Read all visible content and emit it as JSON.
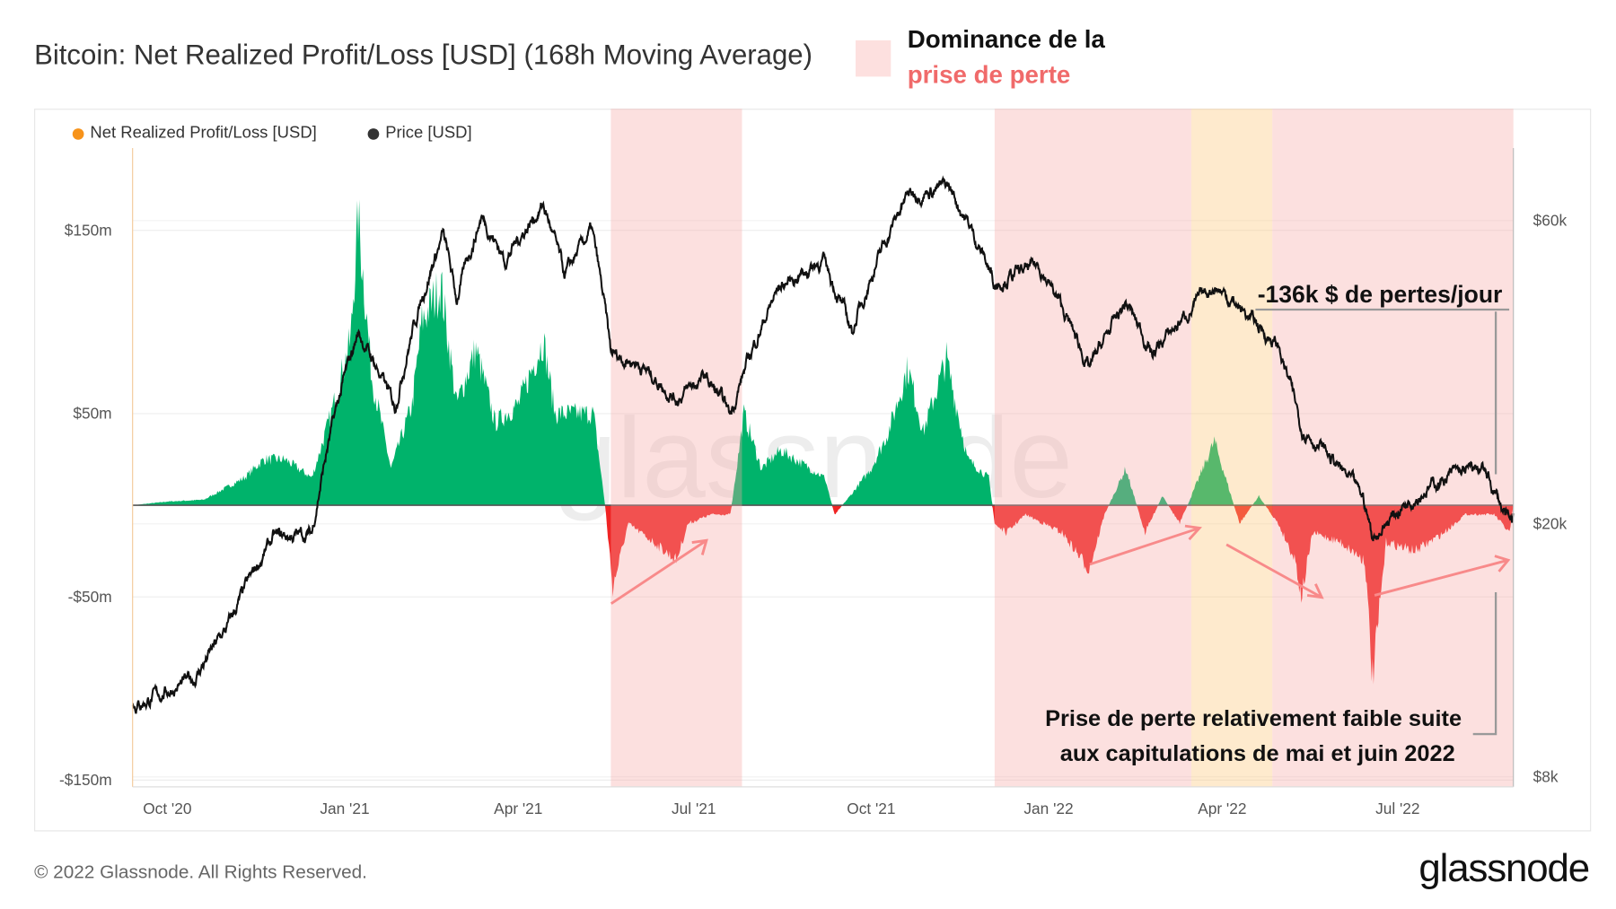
{
  "header": {
    "title": "Bitcoin: Net Realized Profit/Loss [USD] (168h Moving Average)",
    "legend_line1": "Dominance de la",
    "legend_line2": "prise de perte",
    "legend_color": "#fde0df"
  },
  "legend": [
    {
      "label": "Net Realized Profit/Loss [USD]",
      "color": "#f7931a"
    },
    {
      "label": "Price [USD]",
      "color": "#333333"
    }
  ],
  "annotations": {
    "top": "-136k $ de pertes/jour",
    "bottom_line1": "Prise de perte relativement faible suite",
    "bottom_line2": "aux capitulations de mai et juin 2022"
  },
  "footer": {
    "copyright": "© 2022 Glassnode. All Rights Reserved.",
    "logo": "glassnode",
    "watermark": "glassnode"
  },
  "chart_data": {
    "type": "area+line",
    "title": "Bitcoin: Net Realized Profit/Loss [USD] (168h Moving Average)",
    "x_range": [
      "2020-09-13",
      "2022-08-30"
    ],
    "x_ticks": [
      {
        "date": "2020-10-01",
        "label": "Oct '20"
      },
      {
        "date": "2021-01-01",
        "label": "Jan '21"
      },
      {
        "date": "2021-04-01",
        "label": "Apr '21"
      },
      {
        "date": "2021-07-01",
        "label": "Jul '21"
      },
      {
        "date": "2021-10-01",
        "label": "Oct '21"
      },
      {
        "date": "2022-01-01",
        "label": "Jan '22"
      },
      {
        "date": "2022-04-01",
        "label": "Apr '22"
      },
      {
        "date": "2022-07-01",
        "label": "Jul '22"
      }
    ],
    "y_left": {
      "unit": "USD millions",
      "ticks": [
        {
          "v": 150,
          "label": "$150m"
        },
        {
          "v": 50,
          "label": "$50m"
        },
        {
          "v": -50,
          "label": "-$50m"
        },
        {
          "v": -150,
          "label": "-$150m"
        }
      ],
      "range": [
        -150,
        185
      ]
    },
    "y_right": {
      "scale": "log",
      "ticks": [
        {
          "v": 60000,
          "label": "$60k"
        },
        {
          "v": 20000,
          "label": "$20k"
        },
        {
          "v": 8000,
          "label": "$8k"
        }
      ]
    },
    "grid": true,
    "legend_position": "top-left",
    "colors": {
      "profit": "#00b36b",
      "loss": "#f02424",
      "price": "#111111",
      "loss_dominance": "#fde0df",
      "neutral_zone": "#fdecd0",
      "arrows": "#f88a8a"
    },
    "shaded_periods": [
      {
        "from": "2021-05-19",
        "to": "2021-07-26",
        "kind": "loss_dominance"
      },
      {
        "from": "2021-12-04",
        "to": "2022-03-16",
        "kind": "loss_dominance"
      },
      {
        "from": "2022-03-16",
        "to": "2022-04-27",
        "kind": "neutral_zone"
      },
      {
        "from": "2022-04-27",
        "to": "2022-08-30",
        "kind": "loss_dominance"
      }
    ],
    "series": [
      {
        "name": "Net Realized Profit/Loss [USD]",
        "axis": "left",
        "points": [
          [
            "2020-09-13",
            0
          ],
          [
            "2020-10-01",
            2
          ],
          [
            "2020-10-20",
            3
          ],
          [
            "2020-11-10",
            15
          ],
          [
            "2020-11-20",
            25
          ],
          [
            "2020-12-01",
            25
          ],
          [
            "2020-12-15",
            15
          ],
          [
            "2020-12-25",
            50
          ],
          [
            "2021-01-04",
            90
          ],
          [
            "2021-01-08",
            157
          ],
          [
            "2021-01-15",
            70
          ],
          [
            "2021-01-25",
            20
          ],
          [
            "2021-02-05",
            55
          ],
          [
            "2021-02-10",
            100
          ],
          [
            "2021-02-20",
            120
          ],
          [
            "2021-02-28",
            55
          ],
          [
            "2021-03-10",
            85
          ],
          [
            "2021-03-20",
            45
          ],
          [
            "2021-04-01",
            55
          ],
          [
            "2021-04-14",
            90
          ],
          [
            "2021-04-20",
            50
          ],
          [
            "2021-05-01",
            50
          ],
          [
            "2021-05-10",
            50
          ],
          [
            "2021-05-16",
            0
          ],
          [
            "2021-05-20",
            -45
          ],
          [
            "2021-05-28",
            -10
          ],
          [
            "2021-06-10",
            -20
          ],
          [
            "2021-06-22",
            -30
          ],
          [
            "2021-06-28",
            -10
          ],
          [
            "2021-07-10",
            -5
          ],
          [
            "2021-07-20",
            -5
          ],
          [
            "2021-07-27",
            50
          ],
          [
            "2021-08-05",
            20
          ],
          [
            "2021-08-15",
            30
          ],
          [
            "2021-09-07",
            15
          ],
          [
            "2021-09-12",
            -5
          ],
          [
            "2021-09-20",
            5
          ],
          [
            "2021-10-01",
            20
          ],
          [
            "2021-10-10",
            40
          ],
          [
            "2021-10-20",
            75
          ],
          [
            "2021-10-28",
            40
          ],
          [
            "2021-11-09",
            80
          ],
          [
            "2021-11-20",
            25
          ],
          [
            "2021-12-01",
            15
          ],
          [
            "2021-12-04",
            -10
          ],
          [
            "2021-12-10",
            -15
          ],
          [
            "2021-12-20",
            -5
          ],
          [
            "2022-01-08",
            -15
          ],
          [
            "2022-01-22",
            -35
          ],
          [
            "2022-01-30",
            -5
          ],
          [
            "2022-02-10",
            20
          ],
          [
            "2022-02-20",
            -15
          ],
          [
            "2022-03-01",
            5
          ],
          [
            "2022-03-10",
            -10
          ],
          [
            "2022-03-28",
            35
          ],
          [
            "2022-04-10",
            -10
          ],
          [
            "2022-04-20",
            5
          ],
          [
            "2022-04-30",
            -10
          ],
          [
            "2022-05-09",
            -30
          ],
          [
            "2022-05-12",
            -50
          ],
          [
            "2022-05-18",
            -15
          ],
          [
            "2022-06-01",
            -20
          ],
          [
            "2022-06-14",
            -30
          ],
          [
            "2022-06-18",
            -95
          ],
          [
            "2022-06-25",
            -20
          ],
          [
            "2022-07-10",
            -25
          ],
          [
            "2022-07-25",
            -15
          ],
          [
            "2022-08-05",
            -5
          ],
          [
            "2022-08-20",
            -5
          ],
          [
            "2022-08-28",
            -15
          ],
          [
            "2022-08-30",
            0
          ]
        ]
      },
      {
        "name": "Price [USD]",
        "axis": "right",
        "points": [
          [
            "2020-09-13",
            10300
          ],
          [
            "2020-10-15",
            11400
          ],
          [
            "2020-11-01",
            13700
          ],
          [
            "2020-11-25",
            19000
          ],
          [
            "2020-12-15",
            19300
          ],
          [
            "2021-01-08",
            40000
          ],
          [
            "2021-01-27",
            30500
          ],
          [
            "2021-02-21",
            57000
          ],
          [
            "2021-02-28",
            45000
          ],
          [
            "2021-03-13",
            61000
          ],
          [
            "2021-03-25",
            52000
          ],
          [
            "2021-04-14",
            63500
          ],
          [
            "2021-04-25",
            49000
          ],
          [
            "2021-05-09",
            58000
          ],
          [
            "2021-05-19",
            37000
          ],
          [
            "2021-06-01",
            36000
          ],
          [
            "2021-06-22",
            31500
          ],
          [
            "2021-07-07",
            34000
          ],
          [
            "2021-07-20",
            29800
          ],
          [
            "2021-08-14",
            47000
          ],
          [
            "2021-09-06",
            52000
          ],
          [
            "2021-09-21",
            40000
          ],
          [
            "2021-10-20",
            66000
          ],
          [
            "2021-11-10",
            68000
          ],
          [
            "2021-12-04",
            48000
          ],
          [
            "2021-12-27",
            51000
          ],
          [
            "2022-01-22",
            35000
          ],
          [
            "2022-02-10",
            44500
          ],
          [
            "2022-02-24",
            37000
          ],
          [
            "2022-03-28",
            47500
          ],
          [
            "2022-04-30",
            38000
          ],
          [
            "2022-05-12",
            28500
          ],
          [
            "2022-06-13",
            22000
          ],
          [
            "2022-06-18",
            19000
          ],
          [
            "2022-07-08",
            22000
          ],
          [
            "2022-07-30",
            24000
          ],
          [
            "2022-08-14",
            24400
          ],
          [
            "2022-08-28",
            20000
          ],
          [
            "2022-08-30",
            20200
          ]
        ]
      }
    ]
  }
}
